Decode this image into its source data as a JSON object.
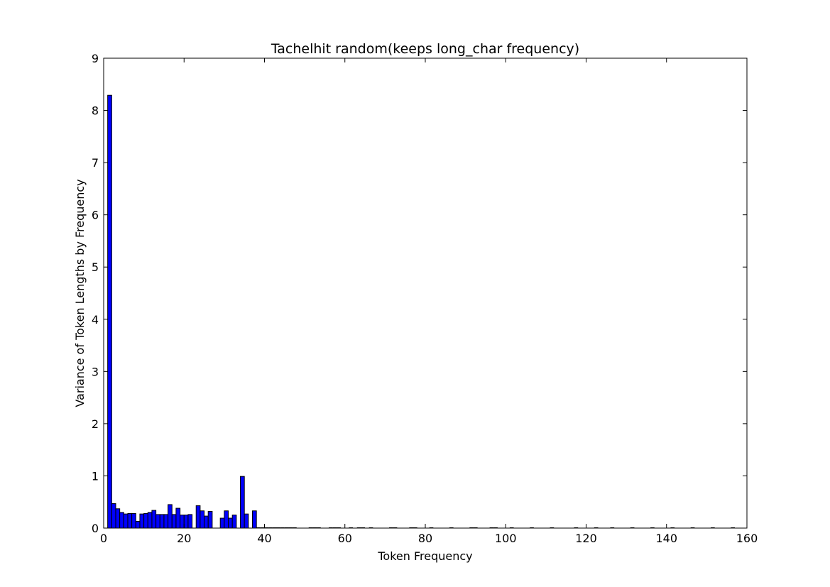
{
  "chart_data": {
    "type": "bar",
    "title": "Tachelhit random(keeps long_char frequency)",
    "xlabel": "Token Frequency",
    "ylabel": "Variance of Token Lengths by Frequency",
    "xlim": [
      0,
      160
    ],
    "ylim": [
      0,
      9
    ],
    "xticks": [
      0,
      20,
      40,
      60,
      80,
      100,
      120,
      140,
      160
    ],
    "yticks": [
      0,
      1,
      2,
      3,
      4,
      5,
      6,
      7,
      8,
      9
    ],
    "grid": false,
    "bar_color": "#0000ff",
    "edge_color": "#000000",
    "bar_width": 1,
    "x": [
      1,
      2,
      3,
      4,
      5,
      6,
      7,
      8,
      9,
      10,
      11,
      12,
      13,
      14,
      15,
      16,
      17,
      18,
      19,
      20,
      21,
      23,
      24,
      25,
      26,
      29,
      30,
      31,
      32,
      34,
      35,
      37
    ],
    "values": [
      8.29,
      0.47,
      0.37,
      0.3,
      0.27,
      0.28,
      0.28,
      0.13,
      0.27,
      0.28,
      0.3,
      0.34,
      0.26,
      0.26,
      0.26,
      0.45,
      0.26,
      0.38,
      0.25,
      0.25,
      0.26,
      0.43,
      0.33,
      0.23,
      0.32,
      0.19,
      0.33,
      0.19,
      0.25,
      0.99,
      0.27,
      0.33
    ],
    "zero_x": [
      38,
      39,
      40,
      41,
      42,
      43,
      44,
      45,
      46,
      47,
      51,
      52,
      53,
      56,
      57,
      58,
      61,
      63,
      64,
      66,
      71,
      72,
      76,
      77,
      81,
      86,
      91,
      92,
      96,
      97,
      101,
      106,
      111,
      117,
      122,
      126,
      131,
      136,
      141,
      146,
      151,
      156
    ]
  }
}
